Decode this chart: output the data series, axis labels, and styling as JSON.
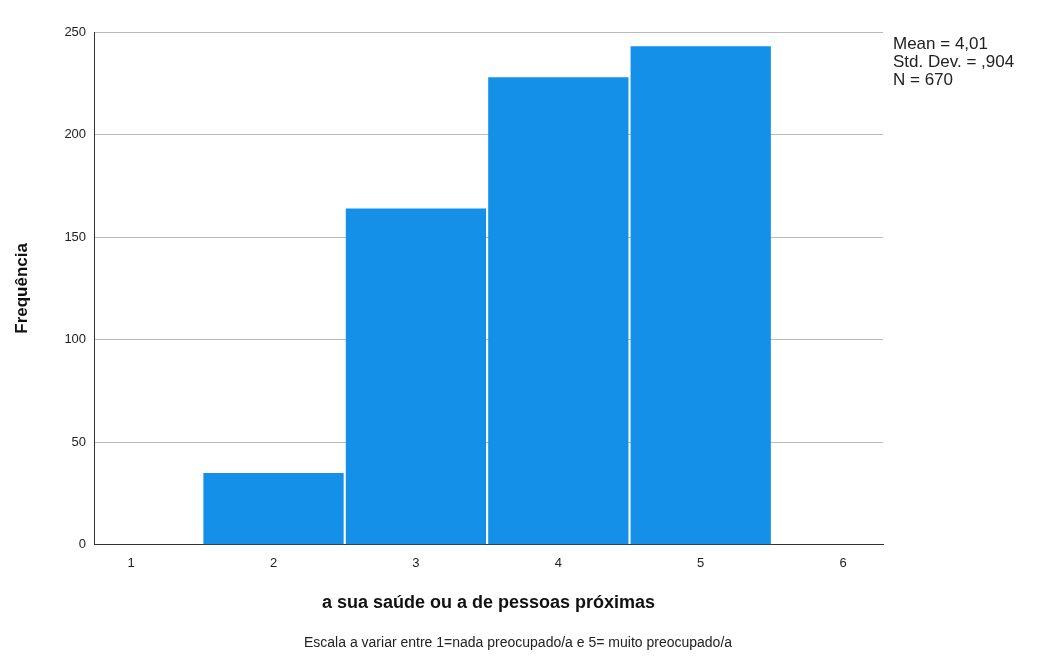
{
  "chart_data": {
    "type": "histogram",
    "xlabel": "a sua saúde ou a de pessoas próximas",
    "ylabel": "Frequência",
    "bins": [
      1.5,
      2.5,
      3.5,
      4.5,
      5.5
    ],
    "values": [
      35,
      164,
      228,
      243
    ],
    "color": "#1490e8",
    "xlim": [
      0.74,
      6.28
    ],
    "xticks": [
      1,
      2,
      3,
      4,
      5,
      6
    ],
    "ylim": [
      0,
      250
    ],
    "yticks": [
      0,
      50,
      100,
      150,
      200,
      250
    ],
    "grid": "y",
    "legend": false,
    "annotations": [
      "Mean = 4,01",
      "Std. Dev. = ,904",
      "N = 670",
      "Escala a variar entre 1=nada preocupado/a e 5= muito preocupado/a"
    ]
  }
}
